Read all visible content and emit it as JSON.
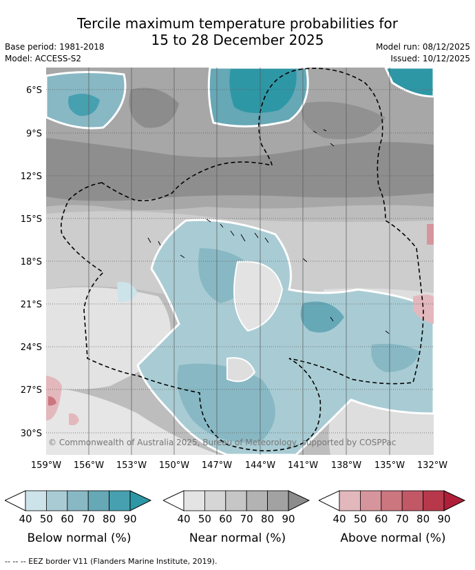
{
  "title": {
    "line1": "Tercile maximum temperature probabilities for",
    "line2": "15 to 28 December 2025"
  },
  "meta_left": {
    "base_period": "Base period: 1981-2018",
    "model": "Model: ACCESS-S2"
  },
  "meta_right": {
    "model_run": "Model run: 08/12/2025",
    "issued": "Issued: 10/12/2025"
  },
  "map": {
    "lat_labels": [
      "6°S",
      "9°S",
      "12°S",
      "15°S",
      "18°S",
      "21°S",
      "24°S",
      "27°S",
      "30°S"
    ],
    "lon_labels": [
      "159°W",
      "156°W",
      "153°W",
      "150°W",
      "147°W",
      "144°W",
      "141°W",
      "138°W",
      "135°W",
      "132°W"
    ],
    "copyright": "© Commonwealth of Australia 2025, Bureau of Meteorology, supported by COSPPac"
  },
  "colorbars": [
    {
      "label": "Below normal (%)",
      "ticks": [
        "40",
        "50",
        "60",
        "70",
        "80",
        "90"
      ],
      "colors": [
        "#cde3ea",
        "#a9ccd4",
        "#88b8c4",
        "#66a8b6",
        "#47a0b0",
        "#2e97a6"
      ]
    },
    {
      "label": "Near normal (%)",
      "ticks": [
        "40",
        "50",
        "60",
        "70",
        "80",
        "90"
      ],
      "colors": [
        "#e4e4e4",
        "#d6d6d6",
        "#c6c6c6",
        "#b3b3b3",
        "#a2a2a2",
        "#8c8c8c"
      ]
    },
    {
      "label": "Above normal (%)",
      "ticks": [
        "40",
        "50",
        "60",
        "70",
        "80",
        "90"
      ],
      "colors": [
        "#e3b8bd",
        "#d6959c",
        "#cc7680",
        "#c25866",
        "#b8384b",
        "#b01f3a"
      ]
    }
  ],
  "footer": "--  --  -- EEZ border V11 (Flanders Marine Institute, 2019)."
}
